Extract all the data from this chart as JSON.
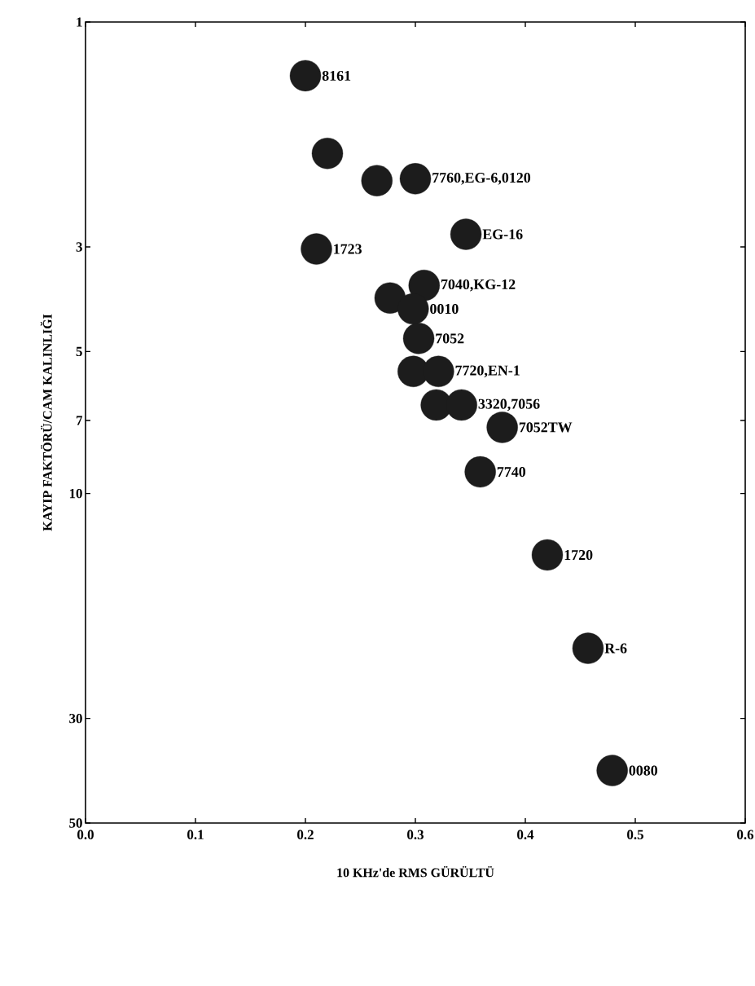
{
  "chart_data": {
    "type": "scatter",
    "xlabel": "10 KHz'de RMS GÜRÜLTÜ",
    "ylabel": "KAYIP FAKTÖRÜ/CAM KALINLIĞI",
    "x": [
      0.2,
      0.22,
      0.265,
      0.3,
      0.346,
      0.21,
      0.308,
      0.277,
      0.298,
      0.303,
      0.298,
      0.321,
      0.319,
      0.342,
      0.379,
      0.359,
      0.42,
      0.457,
      0.479
    ],
    "values": [
      1.3,
      1.9,
      2.17,
      2.15,
      2.82,
      3.03,
      3.62,
      3.85,
      4.06,
      4.69,
      5.51,
      5.51,
      6.49,
      6.49,
      7.24,
      9.0,
      13.5,
      21.3,
      38.7
    ],
    "color": "#1c1c1c",
    "marker": "circle",
    "log": "y",
    "xlim": [
      0,
      0.6
    ],
    "ylim": [
      50,
      1
    ],
    "xticks": [
      {
        "value": 0,
        "label": "0.0"
      },
      0.1,
      0.2,
      0.3,
      0.4,
      0.5,
      0.6
    ],
    "yticks": [
      1,
      3,
      5,
      7,
      10,
      30,
      50
    ],
    "grid": false,
    "annotations": [
      {
        "text": "8161",
        "x": 0.2,
        "y": 1.3
      },
      {
        "text": "7760,EG-6,0120",
        "x": 0.3,
        "y": 2.15
      },
      {
        "text": "EG-16",
        "x": 0.346,
        "y": 2.82
      },
      {
        "text": "1723",
        "x": 0.21,
        "y": 3.03
      },
      {
        "text": "7040,KG-12",
        "x": 0.308,
        "y": 3.62
      },
      {
        "text": "0010",
        "x": 0.298,
        "y": 4.06
      },
      {
        "text": "7052",
        "x": 0.303,
        "y": 4.69
      },
      {
        "text": "7720,EN-1",
        "x": 0.321,
        "y": 5.51
      },
      {
        "text": "3320,7056",
        "x": 0.342,
        "y": 6.49
      },
      {
        "text": "7052TW",
        "x": 0.379,
        "y": 7.24
      },
      {
        "text": "7740",
        "x": 0.359,
        "y": 9.0
      },
      {
        "text": "1720",
        "x": 0.42,
        "y": 13.5
      },
      {
        "text": "R-6",
        "x": 0.457,
        "y": 21.3
      },
      {
        "text": "0080",
        "x": 0.479,
        "y": 38.7
      }
    ]
  }
}
